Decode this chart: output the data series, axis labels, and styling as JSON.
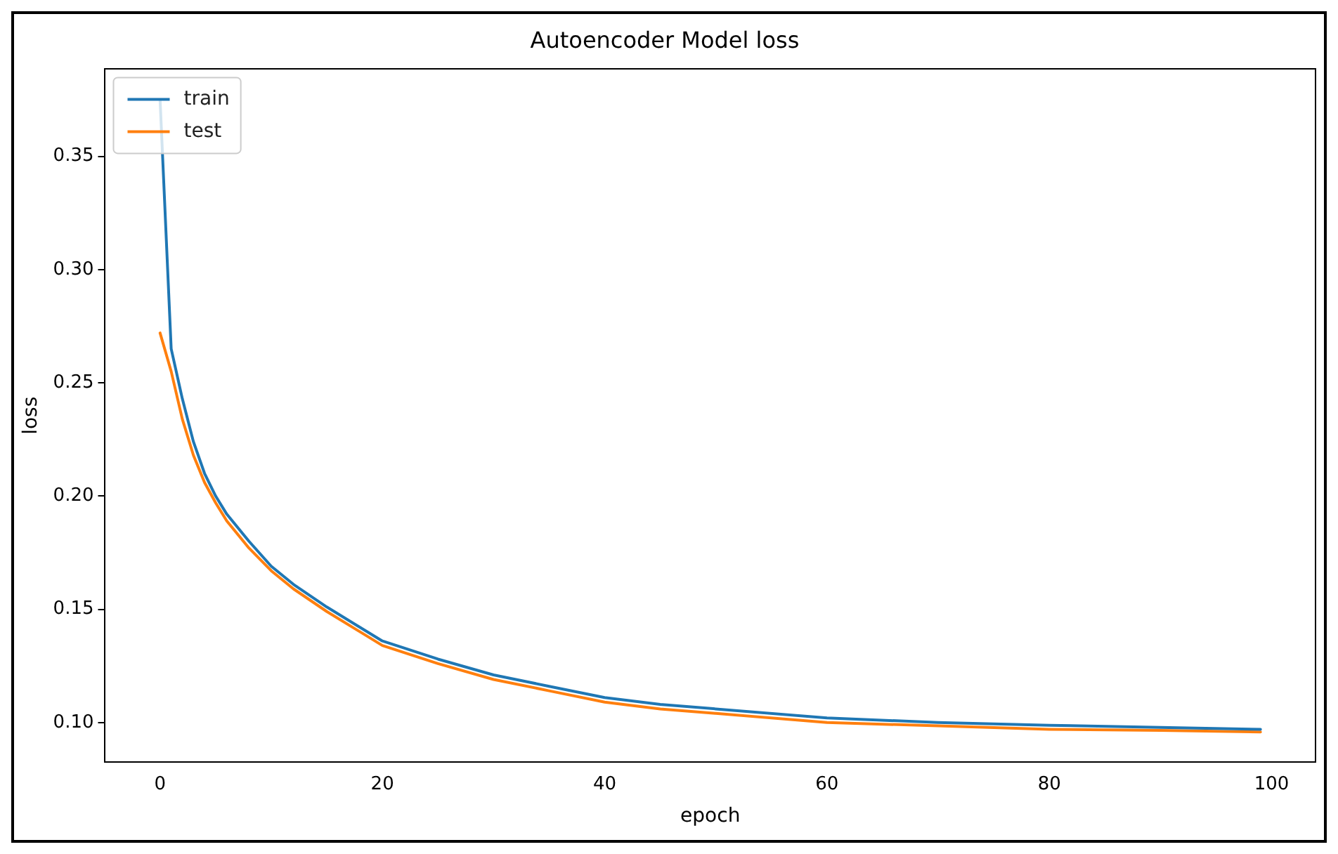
{
  "chart_data": {
    "type": "line",
    "title": "Autoencoder Model loss",
    "xlabel": "epoch",
    "ylabel": "loss",
    "xlim": [
      -4.95,
      103.95
    ],
    "xticks": [
      0,
      20,
      40,
      60,
      80,
      100
    ],
    "ylim": [
      0.0825,
      0.3885
    ],
    "yticks": [
      {
        "value": 0.1,
        "label": "0.10"
      },
      {
        "value": 0.15,
        "label": "0.15"
      },
      {
        "value": 0.2,
        "label": "0.20"
      },
      {
        "value": 0.25,
        "label": "0.25"
      },
      {
        "value": 0.3,
        "label": "0.30"
      },
      {
        "value": 0.35,
        "label": "0.35"
      }
    ],
    "legend": "top left",
    "grid": false,
    "marker": "none",
    "line_style": "solid",
    "series": [
      {
        "name": "train",
        "color": "#1f77b4",
        "x": [
          0,
          1,
          2,
          3,
          4,
          5,
          6,
          8,
          10,
          12,
          15,
          20,
          25,
          30,
          35,
          40,
          45,
          50,
          60,
          70,
          80,
          90,
          99
        ],
        "values": [
          0.375,
          0.265,
          0.243,
          0.224,
          0.21,
          0.2,
          0.192,
          0.18,
          0.169,
          0.161,
          0.151,
          0.136,
          0.128,
          0.121,
          0.116,
          0.111,
          0.108,
          0.106,
          0.102,
          0.1,
          0.0988,
          0.0978,
          0.097
        ]
      },
      {
        "name": "test",
        "color": "#ff7f0e",
        "x": [
          0,
          1,
          2,
          3,
          4,
          5,
          6,
          8,
          10,
          12,
          15,
          20,
          25,
          30,
          35,
          40,
          45,
          50,
          60,
          70,
          80,
          90,
          99
        ],
        "values": [
          0.272,
          0.255,
          0.234,
          0.218,
          0.206,
          0.197,
          0.189,
          0.177,
          0.167,
          0.159,
          0.149,
          0.134,
          0.126,
          0.119,
          0.114,
          0.109,
          0.106,
          0.104,
          0.1,
          0.0985,
          0.097,
          0.0965,
          0.0958
        ]
      }
    ]
  }
}
